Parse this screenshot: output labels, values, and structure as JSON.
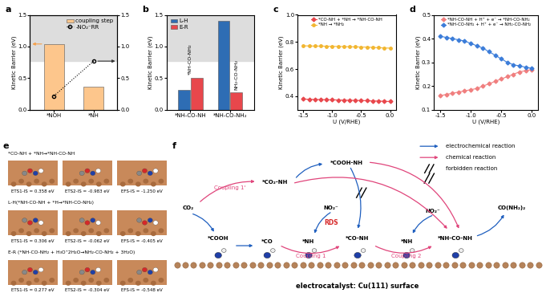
{
  "chart_data": [
    {
      "panel": "a",
      "type": "bar",
      "categories": [
        "*NOH",
        "*NH"
      ],
      "ylabel": "Kinetic Barrier (eV)",
      "ylim": [
        0,
        1.5
      ],
      "yticks": [
        {
          "value": 0,
          "label": "0.0"
        },
        0.5,
        {
          "value": 1,
          "label": "1.0"
        },
        1.5
      ],
      "y2lim": [
        0,
        1.5
      ],
      "y2ticks": [
        {
          "value": 0,
          "label": "0.0"
        },
        0.5,
        {
          "value": 1,
          "label": "1.0"
        },
        1.5
      ],
      "shaded_range": [
        0.77,
        1.5
      ],
      "legend": "upper right",
      "series": [
        {
          "name": "coupling step",
          "type": "bar",
          "color": "#FDC68C",
          "values": [
            1.04,
            0.36
          ]
        },
        {
          "name": "-NO₂⁻RR",
          "type": "line",
          "axis": "y2",
          "color": "#000000",
          "marker": "circle",
          "line_style": "dotted",
          "values": [
            0.22,
            0.77
          ]
        }
      ]
    },
    {
      "panel": "b",
      "type": "bar",
      "categories": [
        "*NH-CO-NH",
        "*NH-CO-NH₂"
      ],
      "ylabel": "Kinetic Barrier (eV)",
      "ylim": [
        0,
        1.5
      ],
      "yticks": [
        {
          "value": 0,
          "label": "0.0"
        },
        0.5,
        {
          "value": 1,
          "label": "1.0"
        },
        1.5
      ],
      "shaded_range": [
        0.77,
        1.5
      ],
      "legend": "upper left",
      "annotations": [
        "*NH-CO-NH₂",
        "NH₂-CO-NH₂"
      ],
      "series": [
        {
          "name": "L-H",
          "color": "#2E6DB4",
          "values": [
            0.31,
            1.41
          ]
        },
        {
          "name": "E-R",
          "color": "#E8474C",
          "values": [
            0.51,
            0.28
          ]
        }
      ]
    },
    {
      "panel": "c",
      "type": "line",
      "xlabel": "U (V/RHE)",
      "ylabel": "Kinetic Barrier (eV)",
      "x": [
        -1.5,
        -1.4,
        -1.3,
        -1.2,
        -1.1,
        -1.0,
        -0.9,
        -0.8,
        -0.7,
        -0.6,
        -0.5,
        -0.4,
        -0.3,
        -0.2,
        -0.1,
        0.0
      ],
      "xlim": [
        -1.6,
        0.1
      ],
      "xticks": [
        {
          "value": -1.5,
          "label": "-1.5"
        },
        {
          "value": -1.0,
          "label": "-1.0"
        },
        {
          "value": -0.5,
          "label": "-0.5"
        },
        {
          "value": 0.0,
          "label": "0.0"
        }
      ],
      "ylim": [
        0.3,
        1.0
      ],
      "yticks": [
        0.4,
        0.6,
        0.8,
        {
          "value": 1.0,
          "label": "1.0"
        }
      ],
      "legend": "upper center",
      "series": [
        {
          "name": "*CO-NH + *NH → *NH-CO-NH",
          "color": "#E8474C",
          "marker": "diamond",
          "line_style": "solid",
          "values": [
            0.38,
            0.378,
            0.377,
            0.376,
            0.375,
            0.374,
            0.373,
            0.372,
            0.371,
            0.37,
            0.369,
            0.368,
            0.366,
            0.365,
            0.363,
            0.362
          ]
        },
        {
          "name": "*NH → *NH₂",
          "color": "#F2B630",
          "marker": "circle",
          "line_style": "solid",
          "values": [
            0.772,
            0.771,
            0.77,
            0.77,
            0.769,
            0.768,
            0.767,
            0.766,
            0.765,
            0.764,
            0.763,
            0.762,
            0.76,
            0.758,
            0.756,
            0.755
          ]
        }
      ]
    },
    {
      "panel": "d",
      "type": "line",
      "xlabel": "U (V/RHE)",
      "ylabel": "Kinetic Barrier (eV)",
      "x": [
        -1.5,
        -1.4,
        -1.3,
        -1.2,
        -1.1,
        -1.0,
        -0.9,
        -0.8,
        -0.7,
        -0.6,
        -0.5,
        -0.4,
        -0.3,
        -0.2,
        -0.1,
        0.0
      ],
      "xlim": [
        -1.6,
        0.1
      ],
      "xticks": [
        {
          "value": -1.5,
          "label": "-1.5"
        },
        {
          "value": -1.0,
          "label": "-1.0"
        },
        {
          "value": -0.5,
          "label": "-0.5"
        },
        {
          "value": 0.0,
          "label": "0.0"
        }
      ],
      "ylim": [
        0.1,
        0.5
      ],
      "yticks": [
        0.1,
        0.2,
        0.3,
        0.4,
        0.5
      ],
      "legend": "upper center",
      "series": [
        {
          "name": "*NH-CO-NH + H⁺ + e⁻ → *NH-CO-NH₂",
          "color": "#F07F7F",
          "marker": "diamond",
          "line_style": "solid",
          "values": [
            0.16,
            0.165,
            0.17,
            0.175,
            0.18,
            0.185,
            0.19,
            0.2,
            0.21,
            0.22,
            0.23,
            0.24,
            0.25,
            0.26,
            0.265,
            0.27
          ]
        },
        {
          "name": "*NH-CO-NH₂ + H⁺ + e⁻ → NH₂-CO-NH₂",
          "color": "#3C7DD9",
          "marker": "diamond",
          "line_style": "solid",
          "values": [
            0.41,
            0.405,
            0.4,
            0.395,
            0.39,
            0.38,
            0.37,
            0.36,
            0.345,
            0.33,
            0.315,
            0.3,
            0.29,
            0.285,
            0.28,
            0.275
          ]
        }
      ]
    }
  ],
  "diagram_e": {
    "panel": "e",
    "rows": [
      {
        "title": "*CO-NH + *NH→*NH-CO-NH",
        "energies": [
          "ETS1-IS = 0.358 eV",
          "ETS2-IS = -0.983 eV",
          "EFS-IS = -1.250 eV"
        ]
      },
      {
        "title": "L-H(*NH-CO-NH + *H→*NH-CO-NH₂)",
        "energies": [
          "ETS1-IS = 0.306 eV",
          "ETS2-IS = -0.062 eV",
          "EFS-IS = -0.405 eV"
        ]
      },
      {
        "title": "E-R (*NH-CO-NH₂ + H₃O⁺2H₂O→NH₂-CO-NH₂ + 3H₂O)",
        "energies": [
          "ETS1-IS = 0.277 eV",
          "ETS2-IS = -0.304 eV",
          "EFS-IS = -0.548 eV"
        ]
      }
    ]
  },
  "diagram_f": {
    "panel": "f",
    "nodes": {
      "co2": "CO₂",
      "cooh": "*COOH",
      "co": "*CO",
      "nh1": "*NH",
      "no2a": "NO₂⁻",
      "conh": "*CO-NH",
      "nh2": "*NH",
      "no2b": "NO₂⁻",
      "nhconh": "*NH-CO-NH",
      "urea": "CO(NH₂)₂",
      "co2nh": "*CO₂-NH",
      "coohnh": "*COOH-NH"
    },
    "labels": {
      "rds": "RDS",
      "c1p": "Coupling 1'",
      "c1": "Coupling 1",
      "c2": "Coupling 2"
    },
    "key": [
      "electrochemical reaction",
      "chemical reaction",
      "forbidden reaction"
    ],
    "caption": "electrocatalyst: Cu(111) surface"
  }
}
